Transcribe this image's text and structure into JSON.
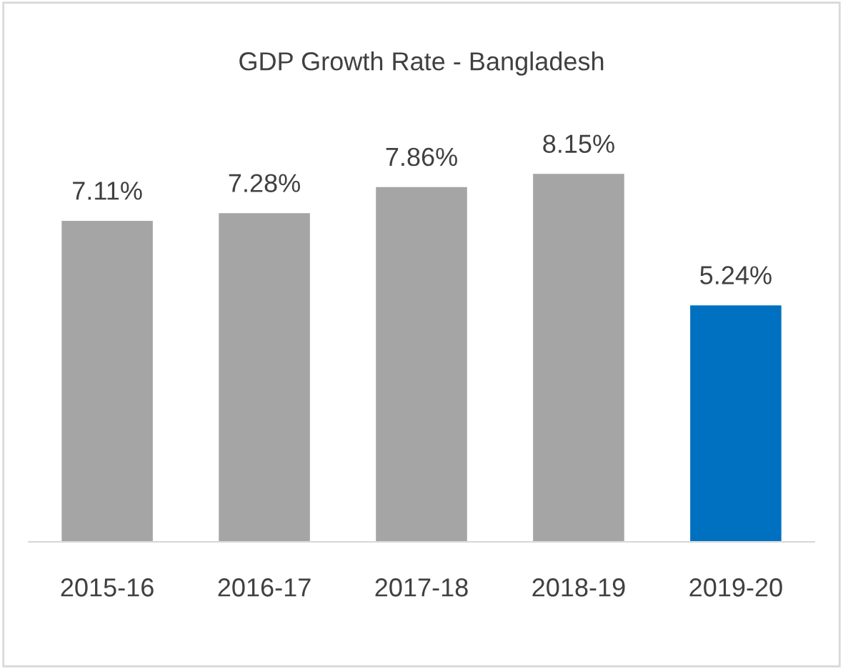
{
  "chart_data": {
    "type": "bar",
    "title": "GDP Growth Rate - Bangladesh",
    "categories": [
      "2015-16",
      "2016-17",
      "2017-18",
      "2018-19",
      "2019-20"
    ],
    "values": [
      7.11,
      7.28,
      7.86,
      8.15,
      5.24
    ],
    "colors": [
      "#a5a5a5",
      "#a5a5a5",
      "#a5a5a5",
      "#a5a5a5",
      "#0070c0"
    ],
    "value_labels": [
      "7.11%",
      "7.28%",
      "7.86%",
      "8.15%",
      "5.24%"
    ],
    "grid": false,
    "legend": false
  }
}
